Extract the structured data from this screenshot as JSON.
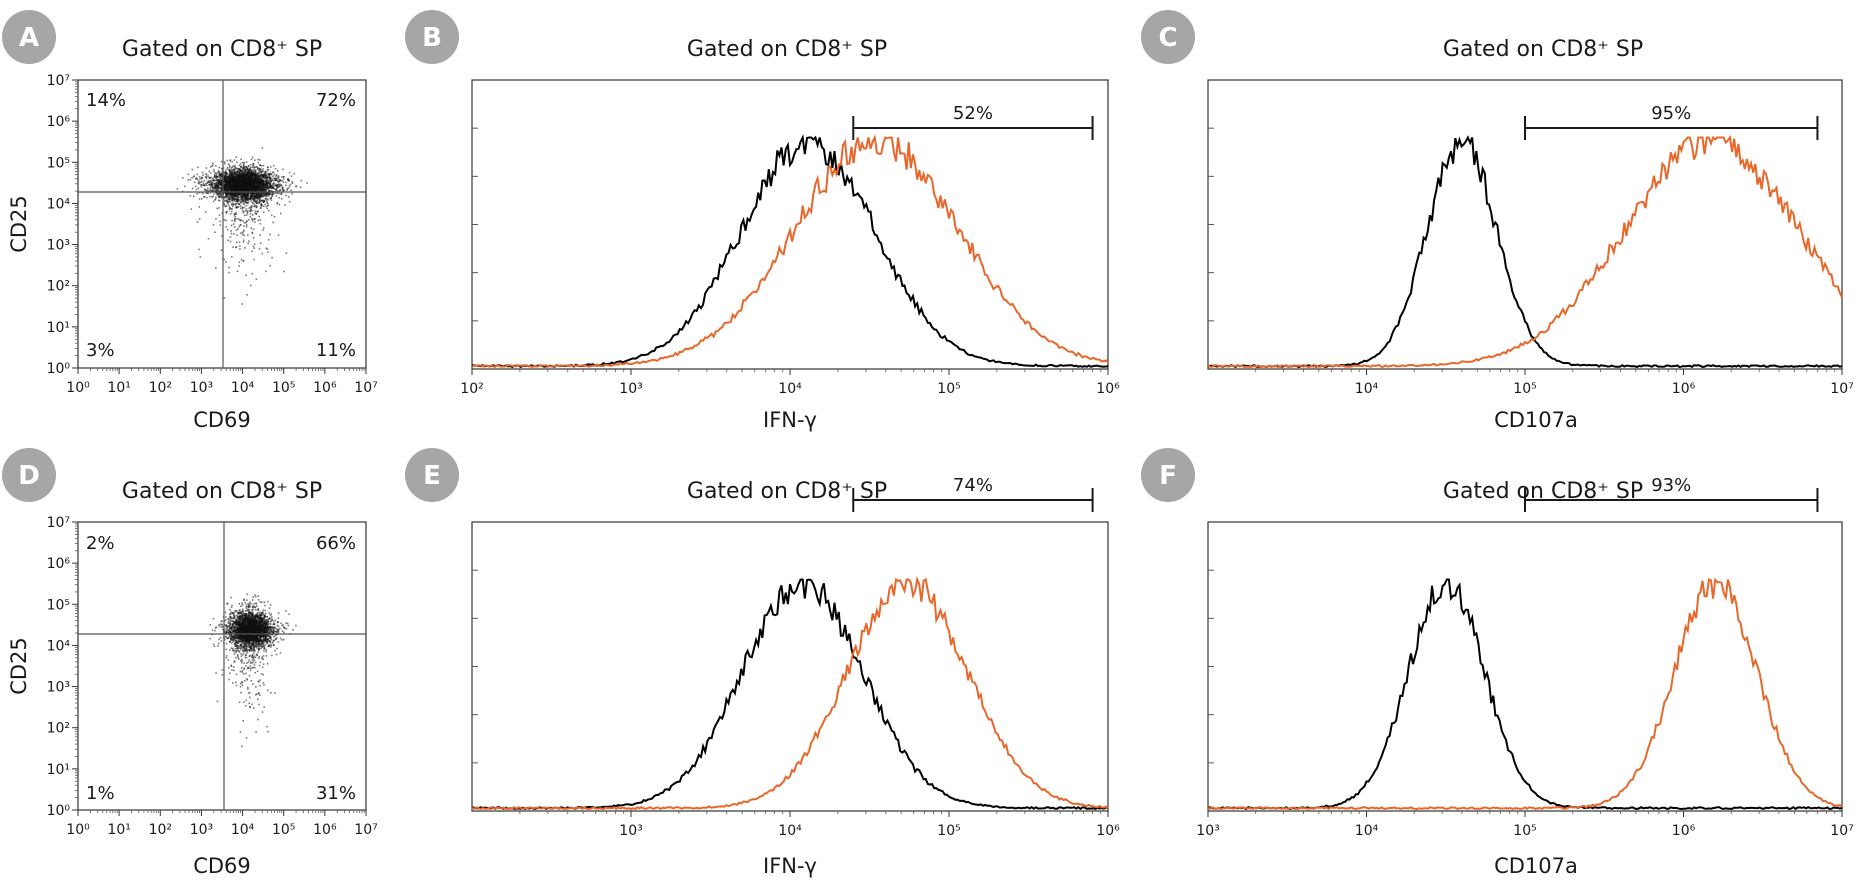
{
  "colors": {
    "control": "#000000",
    "sample": "#e8672a",
    "badge": "#a6a6a6"
  },
  "panels": [
    {
      "letter": "A",
      "title": "Gated on CD8⁺ SP"
    },
    {
      "letter": "B",
      "title": "Gated on CD8⁺ SP"
    },
    {
      "letter": "C",
      "title": "Gated on CD8⁺ SP"
    },
    {
      "letter": "D",
      "title": "Gated on CD8⁺ SP"
    },
    {
      "letter": "E",
      "title": "Gated on CD8⁺ SP"
    },
    {
      "letter": "F",
      "title": "Gated on CD8⁺ SP"
    }
  ],
  "chart_data": [
    {
      "panel": "A",
      "type": "scatter",
      "xlabel": "CD69",
      "ylabel": "CD25",
      "xscale": "log",
      "yscale": "log",
      "xlim": [
        1,
        10000000
      ],
      "ylim": [
        1,
        10000000
      ],
      "xticks": [
        "10⁰",
        "10¹",
        "10²",
        "10³",
        "10⁴",
        "10⁵",
        "10⁶",
        "10⁷"
      ],
      "yticks": [
        "10⁰",
        "10¹",
        "10²",
        "10³",
        "10⁴",
        "10⁵",
        "10⁶",
        "10⁷"
      ],
      "gate": {
        "x": 3000,
        "y": 20000
      },
      "quadrants": {
        "top_left": "14%",
        "top_right": "72%",
        "bottom_left": "3%",
        "bottom_right": "11%"
      },
      "population": {
        "center_x": 10000,
        "center_y": 30000,
        "n": 4000
      }
    },
    {
      "panel": "B",
      "type": "histogram",
      "xlabel": "IFN-γ",
      "xscale": "log",
      "xlim": [
        100,
        1000000
      ],
      "xticks": [
        "10²",
        "10³",
        "10⁴",
        "10⁵",
        "10⁶"
      ],
      "gate": {
        "from": 25000,
        "to": 800000,
        "label": "52%"
      },
      "series": [
        {
          "color": "control",
          "peak": 13000,
          "width_decades": 0.42
        },
        {
          "color": "sample",
          "peak": 35000,
          "width_decades": 0.52
        }
      ]
    },
    {
      "panel": "C",
      "type": "histogram",
      "xlabel": "CD107a",
      "xscale": "log",
      "xlim": [
        1000,
        10000000
      ],
      "xticks": [
        "10⁴",
        "10⁵",
        "10⁶",
        "10⁷"
      ],
      "gate": {
        "from": 100000,
        "to": 7000000,
        "label": "95%"
      },
      "series": [
        {
          "color": "control",
          "peak": 40000,
          "width_decades": 0.22
        },
        {
          "color": "sample",
          "peak": 1500000,
          "width_decades": 0.55
        }
      ]
    },
    {
      "panel": "D",
      "type": "scatter",
      "xlabel": "CD69",
      "ylabel": "CD25",
      "xscale": "log",
      "yscale": "log",
      "xlim": [
        1,
        10000000
      ],
      "ylim": [
        1,
        10000000
      ],
      "xticks": [
        "10⁰",
        "10¹",
        "10²",
        "10³",
        "10⁴",
        "10⁵",
        "10⁶",
        "10⁷"
      ],
      "yticks": [
        "10⁰",
        "10¹",
        "10²",
        "10³",
        "10⁴",
        "10⁵",
        "10⁶",
        "10⁷"
      ],
      "gate": {
        "x": 3000,
        "y": 20000
      },
      "quadrants": {
        "top_left": "2%",
        "top_right": "66%",
        "bottom_left": "1%",
        "bottom_right": "31%"
      },
      "population": {
        "center_x": 15000,
        "center_y": 25000,
        "n": 3000
      }
    },
    {
      "panel": "E",
      "type": "histogram",
      "xlabel": "IFN-γ",
      "xscale": "log",
      "xlim": [
        100,
        1000000
      ],
      "xticks": [
        "10³",
        "10⁴",
        "10⁵",
        "10⁶"
      ],
      "gate": {
        "from": 25000,
        "to": 800000,
        "label": "74%"
      },
      "series": [
        {
          "color": "control",
          "peak": 12000,
          "width_decades": 0.38
        },
        {
          "color": "sample",
          "peak": 55000,
          "width_decades": 0.38
        }
      ]
    },
    {
      "panel": "F",
      "type": "histogram",
      "xlabel": "CD107a",
      "xscale": "log",
      "xlim": [
        1000,
        10000000
      ],
      "xticks": [
        "10³",
        "10⁴",
        "10⁵",
        "10⁶",
        "10⁷"
      ],
      "gate": {
        "from": 100000,
        "to": 7000000,
        "label": "93%"
      },
      "series": [
        {
          "color": "control",
          "peak": 32000,
          "width_decades": 0.24
        },
        {
          "color": "sample",
          "peak": 1600000,
          "width_decades": 0.26
        }
      ]
    }
  ]
}
